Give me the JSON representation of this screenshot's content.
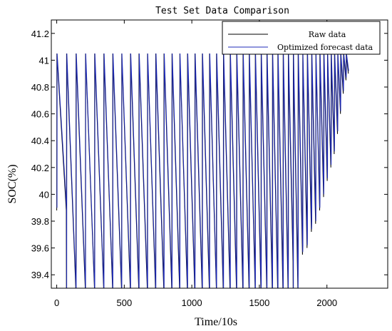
{
  "chart_data": {
    "type": "line",
    "title": "Test Set Data Comparison",
    "xlabel": "Time/10s",
    "ylabel": "SOC(%)",
    "xlim": [
      -40,
      2450
    ],
    "ylim": [
      39.3,
      41.3
    ],
    "xticks": [
      0,
      500,
      1000,
      1500,
      2000
    ],
    "yticks": [
      39.4,
      39.6,
      39.8,
      40,
      40.2,
      40.4,
      40.6,
      40.8,
      41,
      41.2
    ],
    "grid": false,
    "legend_position": "top-right",
    "series": [
      {
        "name": "Raw data",
        "color": "#000000",
        "cycles": {
          "starts": [
            0,
            72,
            142,
            212,
            280,
            348,
            414,
            480,
            545,
            608,
            671,
            732,
            793,
            852,
            910,
            967,
            1022,
            1077,
            1130,
            1182,
            1233,
            1283,
            1331,
            1378,
            1424,
            1469,
            1512,
            1555,
            1596,
            1636,
            1675,
            1713,
            1750,
            1786,
            1820,
            1854,
            1886,
            1917,
            1947,
            1976,
            2003,
            2030,
            2055,
            2079,
            2101,
            2122,
            2142,
            2160
          ],
          "peak": 41.05,
          "troughs": [
            39.88,
            39.22,
            39.26,
            39.22,
            39.22,
            39.24,
            39.22,
            39.22,
            39.25,
            39.22,
            39.22,
            39.24,
            39.22,
            39.22,
            39.22,
            39.22,
            39.24,
            39.22,
            39.22,
            39.22,
            39.28,
            39.22,
            39.22,
            39.28,
            39.22,
            39.22,
            39.3,
            39.22,
            39.22,
            39.22,
            39.22,
            39.5,
            39.22,
            39.55,
            39.6,
            39.72,
            39.78,
            39.88,
            39.98,
            40.1,
            40.2,
            40.3,
            40.45,
            40.6,
            40.75,
            40.85,
            40.9
          ]
        }
      },
      {
        "name": "Optimized forecast data",
        "color": "#1f2bb8"
      }
    ]
  }
}
